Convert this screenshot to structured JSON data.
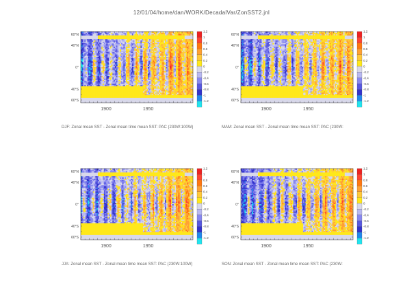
{
  "page": {
    "title": "12/01/04/home/dan/WORK/DecadalVar/ZonSST2.jnl"
  },
  "colors": {
    "background_field": "#d8d8ea",
    "scale": [
      {
        "level": 1.2,
        "color": "#ee2222"
      },
      {
        "level": 1.0,
        "color": "#ff4433"
      },
      {
        "level": 0.8,
        "color": "#ff7711"
      },
      {
        "level": 0.6,
        "color": "#ffa133"
      },
      {
        "level": 0.4,
        "color": "#ffc93a"
      },
      {
        "level": 0.2,
        "color": "#ffe81a"
      },
      {
        "level": 0.0,
        "color": "#d8d8ea"
      },
      {
        "level": -0.2,
        "color": "#b8b8f2"
      },
      {
        "level": -0.4,
        "color": "#8888f0"
      },
      {
        "level": -0.6,
        "color": "#5858e0"
      },
      {
        "level": -0.8,
        "color": "#3333cc"
      },
      {
        "level": -1.0,
        "color": "#2288ee"
      },
      {
        "level": -1.2,
        "color": "#22e4ee"
      }
    ]
  },
  "chart_data": [
    {
      "type": "heatmap",
      "caption": "DJF: Zonal mean SST - Zonal mean time mean SST: PAC (230W:100W)",
      "x_ticks": [
        "1900",
        "1950"
      ],
      "x_tick_values": [
        1900,
        1950
      ],
      "xlim": [
        1870,
        2003
      ],
      "y_ticks": [
        "60°N",
        "40°N",
        "0°",
        "40°S",
        "60°S"
      ],
      "y_tick_values": [
        60,
        40,
        0,
        -40,
        -60
      ],
      "ylim": [
        -65,
        65
      ],
      "colorbar_labels": [
        "1.2",
        "1",
        "0.8",
        "0.6",
        "0.4",
        "0.2",
        "0",
        "-0.2",
        "-0.4",
        "-0.6",
        "-0.8",
        "-1",
        "-1.2"
      ],
      "colorbar_values": [
        1.2,
        1.0,
        0.8,
        0.6,
        0.4,
        0.2,
        0,
        -0.2,
        -0.4,
        -0.6,
        -0.8,
        -1.0,
        -1.2
      ],
      "seed": 11,
      "variant": "djf"
    },
    {
      "type": "heatmap",
      "caption": "MAM: Zonal mean SST - Zonal mean time mean SST: PAC (230W:",
      "x_ticks": [
        "1900",
        "1950"
      ],
      "x_tick_values": [
        1900,
        1950
      ],
      "xlim": [
        1870,
        2003
      ],
      "y_ticks": [
        "60°N",
        "40°N",
        "0°",
        "40°S",
        "60°S"
      ],
      "y_tick_values": [
        60,
        40,
        0,
        -40,
        -60
      ],
      "ylim": [
        -65,
        65
      ],
      "colorbar_labels": [
        "1.2",
        "1",
        "0.8",
        "0.6",
        "0.4",
        "0.2",
        "0",
        "-0.2",
        "-0.4",
        "-0.6",
        "-0.8",
        "-1",
        "-1.2"
      ],
      "colorbar_values": [
        1.2,
        1.0,
        0.8,
        0.6,
        0.4,
        0.2,
        0,
        -0.2,
        -0.4,
        -0.6,
        -0.8,
        -1.0,
        -1.2
      ],
      "seed": 23,
      "variant": "mam"
    },
    {
      "type": "heatmap",
      "caption": "JJA: Zonal mean SST - Zonal mean time mean SST: PAC (230W:100W)",
      "x_ticks": [
        "1900",
        "1950"
      ],
      "x_tick_values": [
        1900,
        1950
      ],
      "xlim": [
        1870,
        2003
      ],
      "y_ticks": [
        "60°N",
        "40°N",
        "0°",
        "40°S",
        "60°S"
      ],
      "y_tick_values": [
        60,
        40,
        0,
        -40,
        -60
      ],
      "ylim": [
        -65,
        65
      ],
      "colorbar_labels": [
        "1.2",
        "1",
        "0.8",
        "0.6",
        "0.4",
        "0.2",
        "0",
        "-0.2",
        "-0.4",
        "-0.6",
        "-0.8",
        "-1",
        "-1.2"
      ],
      "colorbar_values": [
        1.2,
        1.0,
        0.8,
        0.6,
        0.4,
        0.2,
        0,
        -0.2,
        -0.4,
        -0.6,
        -0.8,
        -1.0,
        -1.2
      ],
      "seed": 37,
      "variant": "jja"
    },
    {
      "type": "heatmap",
      "caption": "SON: Zonal mean SST - Zonal mean time mean SST: PAC (230W:",
      "x_ticks": [
        "1900",
        "1950"
      ],
      "x_tick_values": [
        1900,
        1950
      ],
      "xlim": [
        1870,
        2003
      ],
      "y_ticks": [
        "60°N",
        "40°N",
        "0°",
        "40°S",
        "60°S"
      ],
      "y_tick_values": [
        60,
        40,
        0,
        -40,
        -60
      ],
      "ylim": [
        -65,
        65
      ],
      "colorbar_labels": [
        "1.2",
        "1",
        "0.8",
        "0.6",
        "0.4",
        "0.2",
        "0",
        "-0.2",
        "-0.4",
        "-0.6",
        "-0.8",
        "-1",
        "-1.2"
      ],
      "colorbar_values": [
        1.2,
        1.0,
        0.8,
        0.6,
        0.4,
        0.2,
        0,
        -0.2,
        -0.4,
        -0.6,
        -0.8,
        -1.0,
        -1.2
      ],
      "seed": 53,
      "variant": "son"
    }
  ]
}
